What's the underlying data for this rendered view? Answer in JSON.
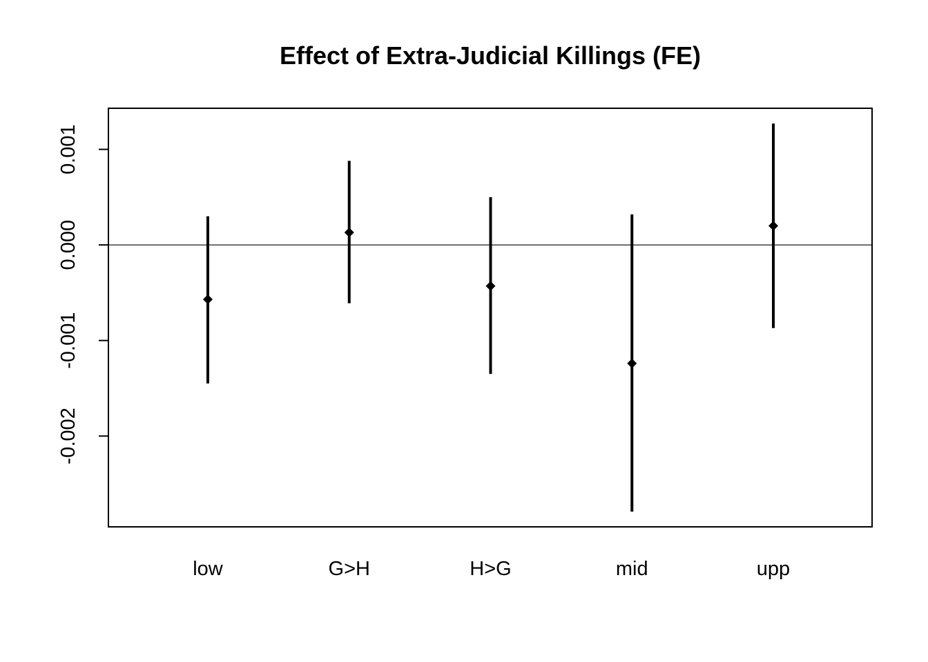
{
  "chart_data": {
    "type": "errorbar",
    "title": "Effect of Extra-Judicial Killings (FE)",
    "xlabel": "",
    "ylabel": "",
    "categories": [
      "low",
      "G>H",
      "H>G",
      "mid",
      "upp"
    ],
    "estimates": [
      -0.00057,
      0.00013,
      -0.00043,
      -0.00124,
      0.0002
    ],
    "lower": [
      -0.00145,
      -0.00061,
      -0.00135,
      -0.00279,
      -0.00087
    ],
    "upper": [
      0.0003,
      0.00088,
      0.0005,
      0.00032,
      0.00127
    ],
    "yticks": [
      -0.002,
      -0.001,
      0.0,
      0.001
    ],
    "ytick_labels": [
      "-0.002",
      "-0.001",
      "0.000",
      "0.001"
    ],
    "ylim": [
      -0.00295,
      0.00143
    ],
    "reference_line": 0,
    "grid": false,
    "colors": {
      "marks": "#000000",
      "reference": "#000000"
    }
  }
}
